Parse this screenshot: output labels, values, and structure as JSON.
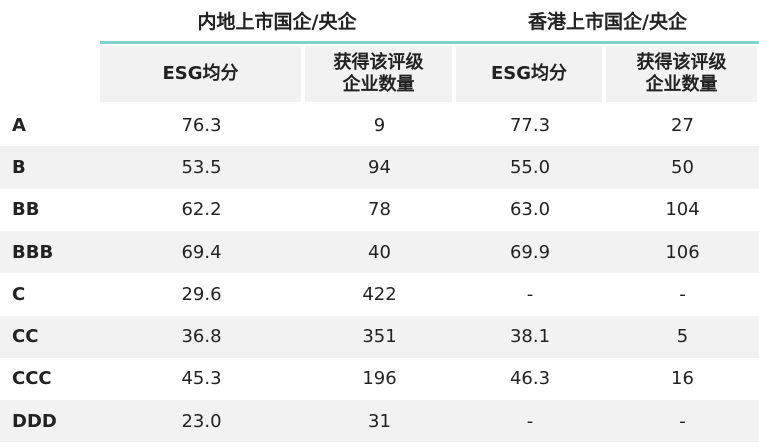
{
  "table": {
    "groups": [
      "内地上市国企/央企",
      "香港上市国企/央企"
    ],
    "columns": [
      "ESG均分",
      "获得该评级\n企业数量",
      "ESG均分",
      "获得该评级\n企业数量"
    ],
    "rows": [
      [
        "A",
        "76.3",
        "9",
        "77.3",
        "27"
      ],
      [
        "B",
        "53.5",
        "94",
        "55.0",
        "50"
      ],
      [
        "BB",
        "62.2",
        "78",
        "63.0",
        "104"
      ],
      [
        "BBB",
        "69.4",
        "40",
        "69.9",
        "106"
      ],
      [
        "C",
        "29.6",
        "422",
        "-",
        "-"
      ],
      [
        "CC",
        "36.8",
        "351",
        "38.1",
        "5"
      ],
      [
        "CCC",
        "45.3",
        "196",
        "46.3",
        "16"
      ],
      [
        "DDD",
        "23.0",
        "31",
        "-",
        "-"
      ]
    ]
  }
}
